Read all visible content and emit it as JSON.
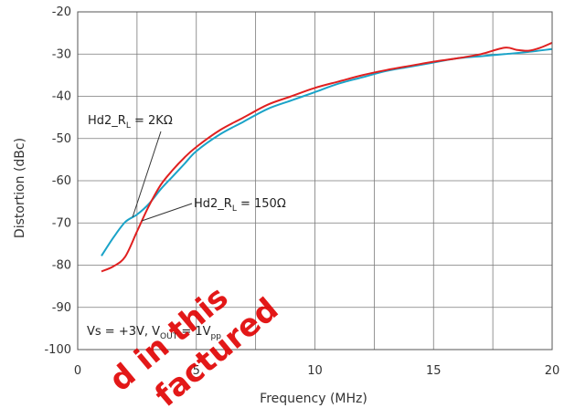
{
  "chart_data": {
    "type": "line",
    "xlabel": "Frequency (MHz)",
    "ylabel": "Distortion (dBc)",
    "xlim": [
      0,
      20
    ],
    "ylim": [
      -100,
      -20
    ],
    "x_ticks": [
      "0",
      "5",
      "10",
      "15",
      "20"
    ],
    "y_ticks": [
      "-20",
      "-30",
      "-40",
      "-50",
      "-60",
      "-70",
      "-80",
      "-90",
      "-100"
    ],
    "grid": true,
    "series": [
      {
        "name": "Hd2_RL = 2KΩ",
        "color": "#1aa3c8",
        "x": [
          1,
          1.5,
          2,
          2.5,
          3,
          3.5,
          4,
          4.5,
          5,
          6,
          7,
          8,
          9,
          10,
          11,
          12,
          13,
          14,
          15,
          16,
          17,
          18,
          19,
          20
        ],
        "y": [
          -77.8,
          -73.5,
          -69.8,
          -68.0,
          -65.5,
          -62.0,
          -59.0,
          -56.0,
          -53.0,
          -49.0,
          -46.0,
          -43.0,
          -41.0,
          -39.0,
          -37.0,
          -35.5,
          -34.0,
          -33.0,
          -32.0,
          -31.0,
          -30.5,
          -30.0,
          -29.5,
          -28.8
        ]
      },
      {
        "name": "Hd2_RL = 150Ω",
        "color": "#e02020",
        "x": [
          1,
          1.5,
          2,
          2.5,
          3,
          3.5,
          4,
          4.5,
          5,
          6,
          7,
          8,
          9,
          10,
          11,
          12,
          13,
          14,
          15,
          16,
          17,
          18,
          18.5,
          19,
          19.5,
          20
        ],
        "y": [
          -81.5,
          -80.3,
          -78.0,
          -72.0,
          -66.0,
          -61.0,
          -57.5,
          -54.5,
          -52.0,
          -48.0,
          -45.0,
          -42.0,
          -40.0,
          -38.0,
          -36.5,
          -35.0,
          -33.8,
          -32.8,
          -31.8,
          -31.0,
          -30.0,
          -28.5,
          -29.0,
          -29.2,
          -28.5,
          -27.3
        ]
      }
    ],
    "annotations": [
      {
        "main": "Hd2_R",
        "sub": "L",
        "rest": " = 2KΩ"
      },
      {
        "main": "Hd2_R",
        "sub": "L",
        "rest": " = 150Ω"
      },
      {
        "text": "Vs = +3V, V",
        "sub": "OUT",
        "mid": " = 1V",
        "sub2": "pp"
      }
    ],
    "watermark": [
      "d in this",
      "factured"
    ]
  }
}
